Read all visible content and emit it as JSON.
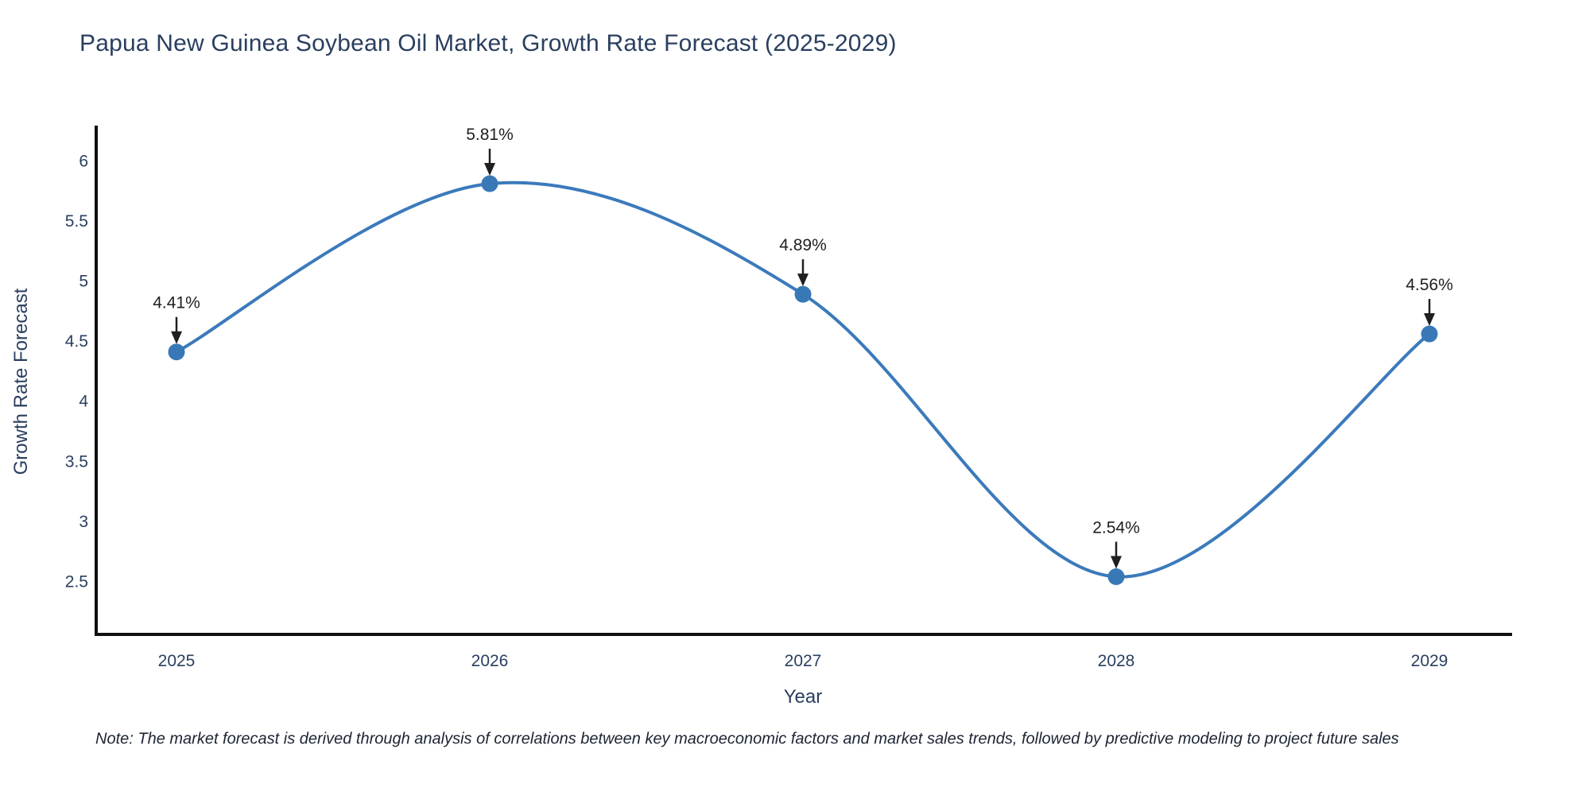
{
  "title": "Papua New Guinea Soybean Oil Market, Growth Rate Forecast (2025-2029)",
  "note": "Note: The market forecast is derived through analysis of correlations between key macroeconomic factors and market sales trends, followed by predictive modeling to project future sales",
  "chart_data": {
    "type": "line",
    "title": "Papua New Guinea Soybean Oil Market, Growth Rate Forecast (2025-2029)",
    "xlabel": "Year",
    "ylabel": "Growth Rate Forecast",
    "categories": [
      "2025",
      "2026",
      "2027",
      "2028",
      "2029"
    ],
    "values": [
      4.41,
      5.81,
      4.89,
      2.54,
      4.56
    ],
    "point_labels": [
      "4.41%",
      "5.81%",
      "4.89%",
      "2.54%",
      "4.56%"
    ],
    "yticks": [
      2.5,
      3,
      3.5,
      4,
      4.5,
      5,
      5.5,
      6
    ],
    "ylim": [
      2.06,
      6.28
    ],
    "line_shape": "spline",
    "grid": false,
    "legend_position": "none",
    "colors": {
      "line": "#3b7abb",
      "marker": "#3878b7",
      "axis": "#111111",
      "annotation": "#1f1f1f",
      "tick_text": "#2a3f5f",
      "title_text": "#2a3f5f"
    }
  }
}
